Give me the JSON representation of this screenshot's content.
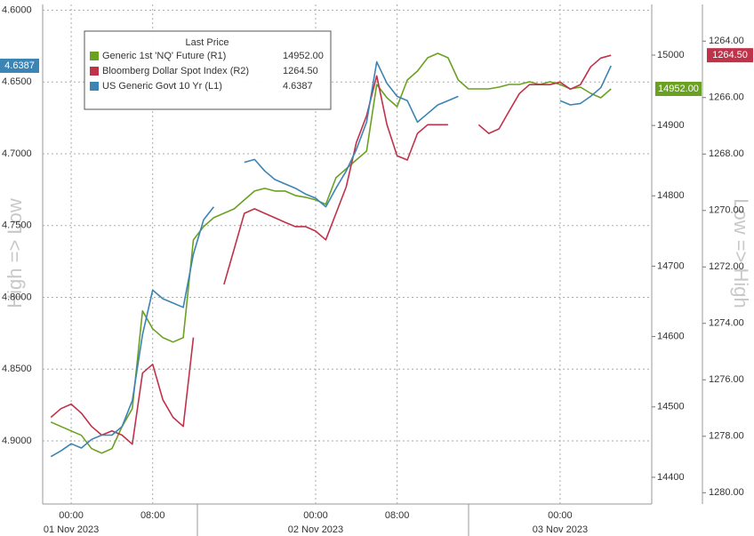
{
  "chart_data": {
    "type": "line",
    "legend_title": "Last Price",
    "legend_position": "upper left",
    "grid": true,
    "ylabel": "High => Low",
    "y3label": "Low => High",
    "x": [
      -2,
      -1,
      0,
      1,
      2,
      3,
      4,
      5,
      6,
      7,
      8,
      9,
      10,
      11,
      12,
      13,
      14,
      15,
      16,
      17,
      18,
      19,
      20,
      21,
      22,
      23,
      24,
      25,
      26,
      27,
      28,
      29,
      30,
      31,
      32,
      33,
      34,
      35,
      36,
      37,
      38,
      39,
      40,
      41,
      42,
      43,
      44,
      45,
      46,
      47,
      48,
      49,
      50,
      51,
      52,
      53
    ],
    "xlim": [
      -2.8,
      57
    ],
    "xticks": [
      {
        "value": 0,
        "label": "00:00"
      },
      {
        "value": 8,
        "label": "08:00"
      },
      {
        "value": 24,
        "label": "00:00"
      },
      {
        "value": 32,
        "label": "08:00"
      },
      {
        "value": 48,
        "label": "00:00"
      }
    ],
    "date_labels": [
      {
        "value": 0,
        "label": "01 Nov 2023"
      },
      {
        "value": 24,
        "label": "02 Nov 2023"
      },
      {
        "value": 48,
        "label": "03 Nov 2023"
      }
    ],
    "ylim": [
      4.596,
      4.944
    ],
    "y_inverted": true,
    "yticks": [
      {
        "value": 4.6,
        "label": "4.6000"
      },
      {
        "value": 4.65,
        "label": "4.6500"
      },
      {
        "value": 4.7,
        "label": "4.7000"
      },
      {
        "value": 4.75,
        "label": "4.7500"
      },
      {
        "value": 4.8,
        "label": "4.8000"
      },
      {
        "value": 4.85,
        "label": "4.8500"
      },
      {
        "value": 4.9,
        "label": "4.9000"
      }
    ],
    "y2lim": [
      14362,
      15072
    ],
    "y2ticks": [
      14400,
      14500,
      14600,
      14700,
      14800,
      14900,
      15000
    ],
    "y3lim": [
      1262.7,
      1280.4
    ],
    "y3_inverted": true,
    "y3ticks": [
      {
        "value": 1264,
        "label": "1264.00"
      },
      {
        "value": 1266,
        "label": "1266.00"
      },
      {
        "value": 1268,
        "label": "1268.00"
      },
      {
        "value": 1270,
        "label": "1270.00"
      },
      {
        "value": 1272,
        "label": "1272.00"
      },
      {
        "value": 1274,
        "label": "1274.00"
      },
      {
        "value": 1276,
        "label": "1276.00"
      },
      {
        "value": 1278,
        "label": "1278.00"
      },
      {
        "value": 1280,
        "label": "1280.00"
      }
    ],
    "series": [
      {
        "name": "Generic 1st 'NQ' Future (R1)",
        "color": "#6aa121",
        "axis": "y2",
        "last_label": "14952.00",
        "values": [
          14478.5,
          14472.2,
          14465.9,
          14459.6,
          14440.7,
          14434.3,
          14440.7,
          14472.2,
          14497.5,
          14636.4,
          14611.1,
          14598.5,
          14592.2,
          14598.5,
          14737.4,
          14756.3,
          14768.9,
          14775.3,
          14781.6,
          14794.2,
          14806.8,
          14810.6,
          14806.8,
          14806.8,
          14800.5,
          14798.0,
          14794.2,
          14787.9,
          14825.8,
          14838.4,
          14851.0,
          14863.6,
          14958.3,
          14939.4,
          14926.7,
          14964.6,
          14977.3,
          14996.2,
          15002.5,
          14996.2,
          14964.6,
          14952.0,
          14952.0,
          14952.0,
          14954.5,
          14958.3,
          14958.3,
          14962.1,
          14958.3,
          14962.1,
          14958.3,
          14952.0,
          14954.5,
          14945.7,
          14939.4,
          14952.0
        ]
      },
      {
        "name": "Bloomberg Dollar Spot Index  (R2)",
        "color": "#c0314a",
        "axis": "y3",
        "last_label": "1264.50",
        "values": [
          1277.33,
          1277.02,
          1276.86,
          1277.18,
          1277.65,
          1277.96,
          1277.81,
          1277.96,
          1278.28,
          1275.76,
          1275.45,
          1276.71,
          1277.33,
          1277.65,
          1274.5,
          null,
          null,
          1272.62,
          1271.36,
          1270.1,
          1269.94,
          1270.1,
          1270.26,
          1270.42,
          1270.57,
          1270.57,
          1270.73,
          1271.04,
          1270.1,
          1269.16,
          1267.59,
          1266.64,
          1265.23,
          1266.96,
          1268.06,
          1268.21,
          1267.27,
          1266.96,
          1266.96,
          1266.96,
          null,
          null,
          1266.96,
          1267.27,
          1267.11,
          1266.48,
          1265.86,
          1265.54,
          1265.54,
          1265.54,
          1265.45,
          1265.7,
          1265.54,
          1264.91,
          1264.6,
          1264.5
        ]
      },
      {
        "name": "US Generic Govt 10 Yr  (L1)",
        "color": "#3b84b4",
        "axis": "y",
        "last_label": "4.6387",
        "values": [
          4.911,
          4.907,
          4.902,
          4.905,
          4.899,
          4.896,
          4.896,
          4.89,
          4.872,
          4.826,
          4.795,
          4.801,
          4.804,
          4.807,
          4.77,
          4.746,
          4.737,
          null,
          null,
          4.706,
          4.704,
          4.712,
          4.718,
          4.721,
          4.724,
          4.728,
          4.731,
          4.737,
          4.724,
          4.712,
          4.697,
          4.678,
          4.636,
          4.651,
          4.66,
          4.663,
          4.678,
          4.672,
          4.666,
          4.663,
          4.66,
          null,
          null,
          null,
          null,
          null,
          null,
          null,
          null,
          null,
          4.663,
          4.666,
          4.665,
          4.66,
          4.654,
          4.6387
        ]
      }
    ]
  }
}
